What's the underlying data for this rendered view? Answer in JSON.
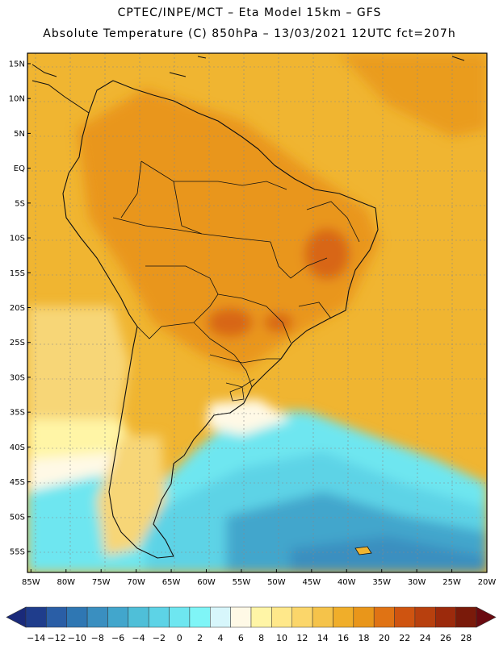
{
  "header": {
    "line1": "CPTEC/INPE/MCT –  Eta Model 15km – GFS",
    "line2": "Absolute Temperature (C) 850hPa – 13/03/2021 12UTC fct=207h"
  },
  "map": {
    "lat_labels": [
      "15N",
      "10N",
      "5N",
      "EQ",
      "5S",
      "10S",
      "15S",
      "20S",
      "25S",
      "30S",
      "35S",
      "40S",
      "45S",
      "50S",
      "55S"
    ],
    "lat_values": [
      15,
      10,
      5,
      0,
      -5,
      -10,
      -15,
      -20,
      -25,
      -30,
      -35,
      -40,
      -45,
      -50,
      -55
    ],
    "lon_labels": [
      "85W",
      "80W",
      "75W",
      "70W",
      "65W",
      "60W",
      "55W",
      "50W",
      "45W",
      "40W",
      "35W",
      "30W",
      "25W",
      "20W"
    ],
    "lon_values": [
      -85,
      -80,
      -75,
      -70,
      -65,
      -60,
      -55,
      -50,
      -45,
      -40,
      -35,
      -30,
      -25,
      -20
    ],
    "extent": {
      "lon_min": -85.5,
      "lon_max": -20,
      "lat_min": -58,
      "lat_max": 16.5
    }
  },
  "colorbar": {
    "labels": [
      "-14",
      "-12",
      "-10",
      "-8",
      "-6",
      "-4",
      "-2",
      "0",
      "2",
      "4",
      "6",
      "8",
      "10",
      "12",
      "14",
      "16",
      "18",
      "20",
      "22",
      "24",
      "26",
      "28"
    ],
    "colors": [
      "#1f3d8c",
      "#2a5ea6",
      "#2f77b3",
      "#3a8fc0",
      "#42a6cc",
      "#4fbfd8",
      "#5dd3e6",
      "#6ee6f0",
      "#7ff5f7",
      "#d7f6fb",
      "#fff9e6",
      "#fff5a6",
      "#ffe88a",
      "#fbd66a",
      "#f5c34a",
      "#f0ae2a",
      "#e9961a",
      "#e07314",
      "#cf5410",
      "#b8400e",
      "#9c2a0c",
      "#7a1a0a"
    ],
    "low_arrow_color": "#1a2a7a",
    "high_arrow_color": "#6a0a10"
  }
}
